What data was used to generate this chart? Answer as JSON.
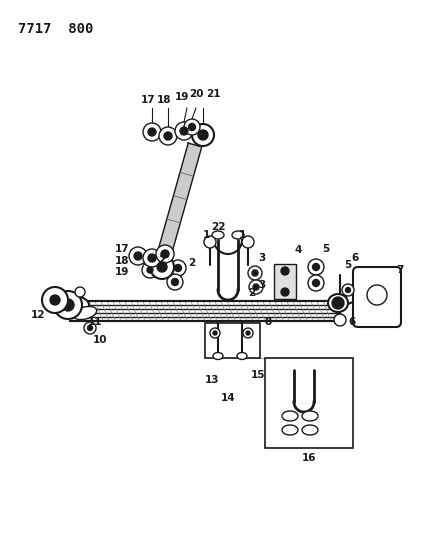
{
  "title": "7717  800",
  "bg_color": "#ffffff",
  "line_color": "#1a1a1a",
  "title_fontsize": 10,
  "label_fontsize": 7.5,
  "fig_width": 4.28,
  "fig_height": 5.33,
  "dpi": 100
}
